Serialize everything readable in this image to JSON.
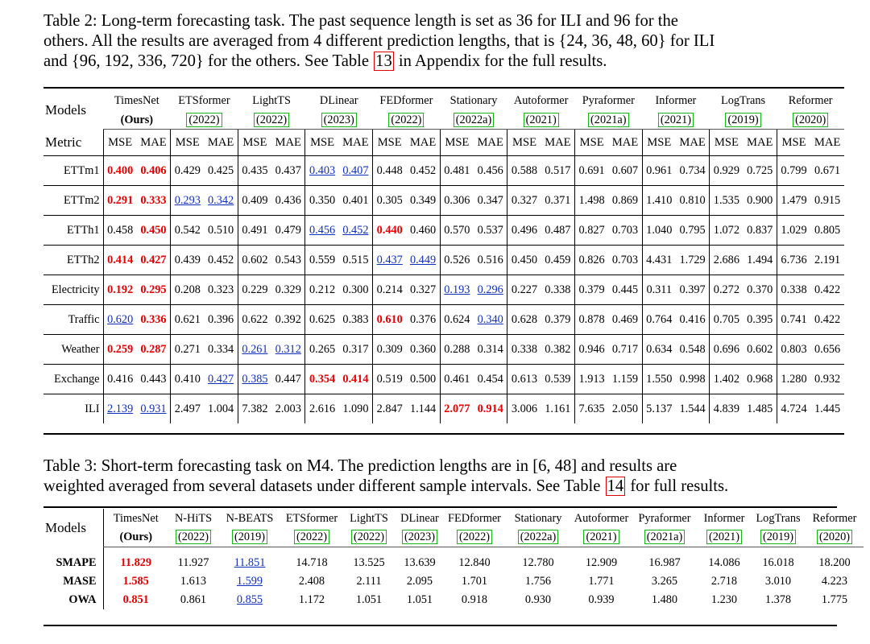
{
  "table2": {
    "caption_lines": [
      [
        "Table 2: Long-term forecasting task. The past sequence length is set as 36 for ILI and 96 for the"
      ],
      [
        "others. All the results are averaged from 4 different prediction lengths, that is {24, 36, 48, 60} for ILI"
      ],
      [
        "and {96, 192, 336, 720} for the others. See Table ",
        "13",
        " in Appendix for the full results."
      ]
    ],
    "models_label": "Models",
    "metric_label": "Metric",
    "metric_names": [
      "MSE",
      "MAE"
    ],
    "models": [
      {
        "name": "TimesNet",
        "year": "(Ours)"
      },
      {
        "name": "ETSformer",
        "year": "(2022)"
      },
      {
        "name": "LightTS",
        "year": "(2022)"
      },
      {
        "name": "DLinear",
        "year": "(2023)"
      },
      {
        "name": "FEDformer",
        "year": "(2022)"
      },
      {
        "name": "Stationary",
        "year": "(2022a)"
      },
      {
        "name": "Autoformer",
        "year": "(2021)"
      },
      {
        "name": "Pyraformer",
        "year": "(2021a)"
      },
      {
        "name": "Informer",
        "year": "(2021)"
      },
      {
        "name": "LogTrans",
        "year": "(2019)"
      },
      {
        "name": "Reformer",
        "year": "(2020)"
      }
    ],
    "rows": [
      {
        "dataset": "ETTm1",
        "values": [
          "0.400",
          "0.406",
          "0.429",
          "0.425",
          "0.435",
          "0.437",
          "0.403",
          "0.407",
          "0.448",
          "0.452",
          "0.481",
          "0.456",
          "0.588",
          "0.517",
          "0.691",
          "0.607",
          "0.961",
          "0.734",
          "0.929",
          "0.725",
          "0.799",
          "0.671"
        ]
      },
      {
        "dataset": "ETTm2",
        "values": [
          "0.291",
          "0.333",
          "0.293",
          "0.342",
          "0.409",
          "0.436",
          "0.350",
          "0.401",
          "0.305",
          "0.349",
          "0.306",
          "0.347",
          "0.327",
          "0.371",
          "1.498",
          "0.869",
          "1.410",
          "0.810",
          "1.535",
          "0.900",
          "1.479",
          "0.915"
        ]
      },
      {
        "dataset": "ETTh1",
        "values": [
          "0.458",
          "0.450",
          "0.542",
          "0.510",
          "0.491",
          "0.479",
          "0.456",
          "0.452",
          "0.440",
          "0.460",
          "0.570",
          "0.537",
          "0.496",
          "0.487",
          "0.827",
          "0.703",
          "1.040",
          "0.795",
          "1.072",
          "0.837",
          "1.029",
          "0.805"
        ]
      },
      {
        "dataset": "ETTh2",
        "values": [
          "0.414",
          "0.427",
          "0.439",
          "0.452",
          "0.602",
          "0.543",
          "0.559",
          "0.515",
          "0.437",
          "0.449",
          "0.526",
          "0.516",
          "0.450",
          "0.459",
          "0.826",
          "0.703",
          "4.431",
          "1.729",
          "2.686",
          "1.494",
          "6.736",
          "2.191"
        ]
      },
      {
        "dataset": "Electricity",
        "values": [
          "0.192",
          "0.295",
          "0.208",
          "0.323",
          "0.229",
          "0.329",
          "0.212",
          "0.300",
          "0.214",
          "0.327",
          "0.193",
          "0.296",
          "0.227",
          "0.338",
          "0.379",
          "0.445",
          "0.311",
          "0.397",
          "0.272",
          "0.370",
          "0.338",
          "0.422"
        ]
      },
      {
        "dataset": "Traffic",
        "values": [
          "0.620",
          "0.336",
          "0.621",
          "0.396",
          "0.622",
          "0.392",
          "0.625",
          "0.383",
          "0.610",
          "0.376",
          "0.624",
          "0.340",
          "0.628",
          "0.379",
          "0.878",
          "0.469",
          "0.764",
          "0.416",
          "0.705",
          "0.395",
          "0.741",
          "0.422"
        ]
      },
      {
        "dataset": "Weather",
        "values": [
          "0.259",
          "0.287",
          "0.271",
          "0.334",
          "0.261",
          "0.312",
          "0.265",
          "0.317",
          "0.309",
          "0.360",
          "0.288",
          "0.314",
          "0.338",
          "0.382",
          "0.946",
          "0.717",
          "0.634",
          "0.548",
          "0.696",
          "0.602",
          "0.803",
          "0.656"
        ]
      },
      {
        "dataset": "Exchange",
        "values": [
          "0.416",
          "0.443",
          "0.410",
          "0.427",
          "0.385",
          "0.447",
          "0.354",
          "0.414",
          "0.519",
          "0.500",
          "0.461",
          "0.454",
          "0.613",
          "0.539",
          "1.913",
          "1.159",
          "1.550",
          "0.998",
          "1.402",
          "0.968",
          "1.280",
          "0.932"
        ]
      },
      {
        "dataset": "ILI",
        "values": [
          "2.139",
          "0.931",
          "2.497",
          "1.004",
          "7.382",
          "2.003",
          "2.616",
          "1.090",
          "2.847",
          "1.144",
          "2.077",
          "0.914",
          "3.006",
          "1.161",
          "7.635",
          "2.050",
          "5.137",
          "1.544",
          "4.839",
          "1.485",
          "4.724",
          "1.445"
        ]
      }
    ],
    "best": {
      "ETTm1": [
        0,
        1
      ],
      "ETTm2": [
        0,
        1
      ],
      "ETTh1": [
        1,
        8
      ],
      "ETTh2": [
        0,
        1
      ],
      "Electricity": [
        0,
        1
      ],
      "Traffic": [
        1,
        8
      ],
      "Weather": [
        0,
        1
      ],
      "Exchange": [
        6,
        7
      ],
      "ILI": [
        10,
        11
      ]
    },
    "second": {
      "ETTm1": [
        6,
        7
      ],
      "ETTm2": [
        2,
        3
      ],
      "ETTh1": [
        6,
        7
      ],
      "ETTh2": [
        8,
        9
      ],
      "Electricity": [
        10,
        11
      ],
      "Traffic": [
        0,
        11
      ],
      "Weather": [
        4,
        5
      ],
      "Exchange": [
        3,
        4
      ],
      "ILI": [
        0,
        1
      ]
    }
  },
  "table3": {
    "caption_lines": [
      [
        "Table 3: Short-term forecasting task on M4. The prediction lengths are in [6, 48] and results are"
      ],
      [
        "weighted averaged from several datasets under different sample intervals. See Table ",
        "14",
        " for full results."
      ]
    ],
    "models_label": "Models",
    "models": [
      {
        "name": "TimesNet",
        "year": "(Ours)"
      },
      {
        "name": "N-HiTS",
        "year": "(2022)"
      },
      {
        "name": "N-BEATS",
        "year": "(2019)"
      },
      {
        "name": "ETSformer",
        "year": "(2022)"
      },
      {
        "name": "LightTS",
        "year": "(2022)"
      },
      {
        "name": "DLinear",
        "year": "(2023)"
      },
      {
        "name": "FEDformer",
        "year": "(2022)"
      },
      {
        "name": "Stationary",
        "year": "(2022a)"
      },
      {
        "name": "Autoformer",
        "year": "(2021)"
      },
      {
        "name": "Pyraformer",
        "year": "(2021a)"
      },
      {
        "name": "Informer",
        "year": "(2021)"
      },
      {
        "name": "LogTrans",
        "year": "(2019)"
      },
      {
        "name": "Reformer",
        "year": "(2020)"
      }
    ],
    "rows": [
      {
        "metric": "SMAPE",
        "values": [
          "11.829",
          "11.927",
          "11.851",
          "14.718",
          "13.525",
          "13.639",
          "12.840",
          "12.780",
          "12.909",
          "16.987",
          "14.086",
          "16.018",
          "18.200"
        ]
      },
      {
        "metric": "MASE",
        "values": [
          "1.585",
          "1.613",
          "1.599",
          "2.408",
          "2.111",
          "2.095",
          "1.701",
          "1.756",
          "1.771",
          "3.265",
          "2.718",
          "3.010",
          "4.223"
        ]
      },
      {
        "metric": "OWA",
        "values": [
          "0.851",
          "0.861",
          "0.855",
          "1.172",
          "1.051",
          "1.051",
          "0.918",
          "0.930",
          "0.939",
          "1.480",
          "1.230",
          "1.378",
          "1.775"
        ]
      }
    ],
    "best_col": 0,
    "second_col": 2
  },
  "colors": {
    "best": "#e80000",
    "second": "#0f2fbd",
    "cite_box": "#19b419",
    "ref_box": "#e00000"
  }
}
